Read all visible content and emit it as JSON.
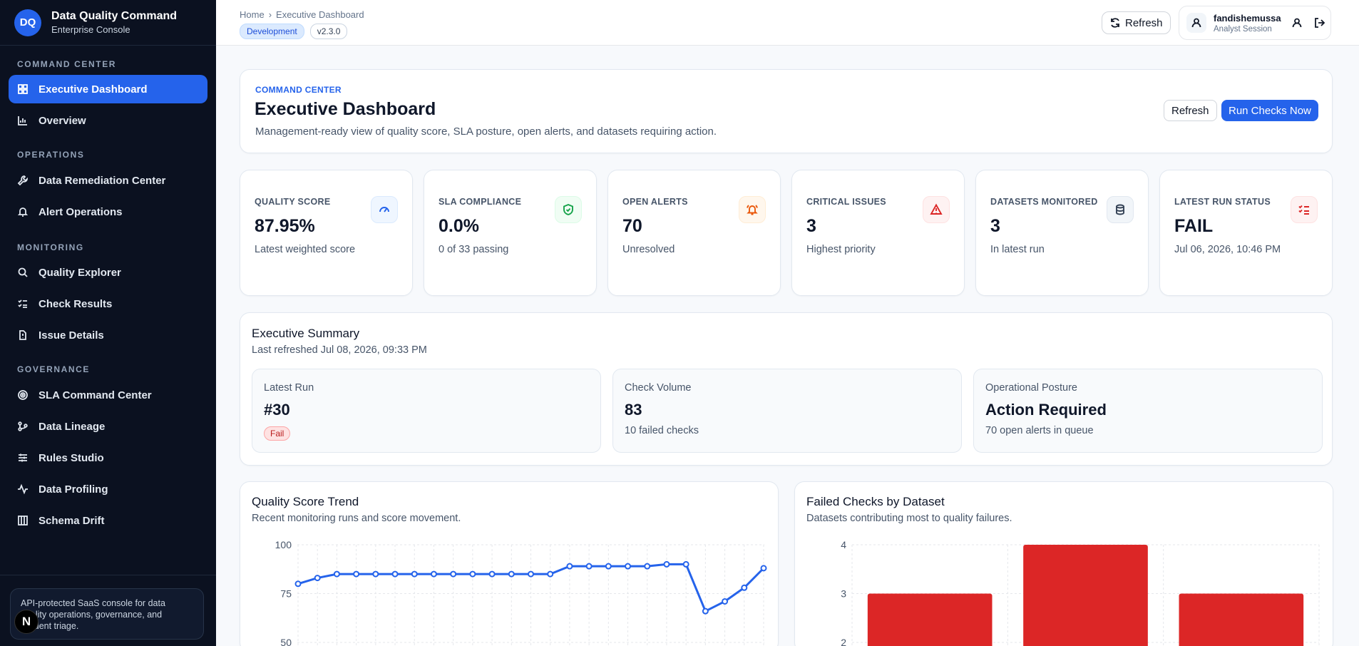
{
  "brand": {
    "logo": "DQ",
    "title": "Data Quality Command",
    "subtitle": "Enterprise Console"
  },
  "sidebar": {
    "sections": [
      {
        "label": "COMMAND CENTER"
      },
      {
        "label": "OPERATIONS"
      },
      {
        "label": "MONITORING"
      },
      {
        "label": "GOVERNANCE"
      }
    ],
    "items": [
      {
        "label": "Executive Dashboard",
        "icon": "grid-icon"
      },
      {
        "label": "Overview",
        "icon": "bar-chart-icon"
      },
      {
        "label": "Data Remediation Center",
        "icon": "wrench-icon"
      },
      {
        "label": "Alert Operations",
        "icon": "bell-icon"
      },
      {
        "label": "Quality Explorer",
        "icon": "search-icon"
      },
      {
        "label": "Check Results",
        "icon": "list-check-icon"
      },
      {
        "label": "Issue Details",
        "icon": "file-alert-icon"
      },
      {
        "label": "SLA Command Center",
        "icon": "target-icon"
      },
      {
        "label": "Data Lineage",
        "icon": "git-branch-icon"
      },
      {
        "label": "Rules Studio",
        "icon": "sliders-icon"
      },
      {
        "label": "Data Profiling",
        "icon": "activity-icon"
      },
      {
        "label": "Schema Drift",
        "icon": "columns-icon"
      }
    ],
    "footer": "API-protected SaaS console for data quality operations, governance, and incident triage.",
    "badge": "N"
  },
  "topbar": {
    "breadcrumb": {
      "home": "Home",
      "separator": "›",
      "current": "Executive Dashboard"
    },
    "env": "Development",
    "version": "v2.3.0",
    "refresh": "Refresh",
    "user": {
      "name": "fandishemussa",
      "role": "Analyst Session"
    }
  },
  "header": {
    "kicker": "COMMAND CENTER",
    "title": "Executive Dashboard",
    "description": "Management-ready view of quality score, SLA posture, open alerts, and datasets requiring action.",
    "refresh": "Refresh",
    "run": "Run Checks Now"
  },
  "kpis": [
    {
      "label": "QUALITY SCORE",
      "value": "87.95%",
      "sub": "Latest weighted score",
      "icon": "gauge-icon",
      "color": "#2563eb",
      "bg": "#eff6ff"
    },
    {
      "label": "SLA COMPLIANCE",
      "value": "0.0%",
      "sub": "0 of 33 passing",
      "icon": "shield-check-icon",
      "color": "#16a34a",
      "bg": "#f0fdf4"
    },
    {
      "label": "OPEN ALERTS",
      "value": "70",
      "sub": "Unresolved",
      "icon": "bell-ring-icon",
      "color": "#ea580c",
      "bg": "#fff7ed"
    },
    {
      "label": "CRITICAL ISSUES",
      "value": "3",
      "sub": "Highest priority",
      "icon": "alert-triangle-icon",
      "color": "#dc2626",
      "bg": "#fef2f2"
    },
    {
      "label": "DATASETS MONITORED",
      "value": "3",
      "sub": "In latest run",
      "icon": "database-icon",
      "color": "#334155",
      "bg": "#f1f5f9"
    },
    {
      "label": "LATEST RUN STATUS",
      "value": "FAIL",
      "sub": "Jul 06, 2026, 10:46 PM",
      "icon": "list-checks-icon",
      "color": "#dc2626",
      "bg": "#fef2f2"
    }
  ],
  "summary": {
    "title": "Executive Summary",
    "refreshed": "Last refreshed Jul 08, 2026, 09:33 PM",
    "latest_run": {
      "label": "Latest Run",
      "value": "#30",
      "badge": "Fail"
    },
    "check_volume": {
      "label": "Check Volume",
      "value": "83",
      "sub": "10 failed checks"
    },
    "posture": {
      "label": "Operational Posture",
      "value": "Action Required",
      "sub": "70 open alerts in queue"
    }
  },
  "charts": {
    "trend": {
      "title": "Quality Score Trend",
      "subtitle": "Recent monitoring runs and score movement."
    },
    "failed": {
      "title": "Failed Checks by Dataset",
      "subtitle": "Datasets contributing most to quality failures."
    }
  },
  "chart_data": [
    {
      "type": "line",
      "title": "Quality Score Trend",
      "y": [
        80,
        83,
        85,
        85,
        85,
        85,
        85,
        85,
        85,
        85,
        85,
        85,
        85,
        85,
        89,
        89,
        89,
        89,
        89,
        90,
        90,
        66,
        71,
        78,
        88
      ],
      "yticks": [
        100,
        75,
        50
      ],
      "ylim": [
        50,
        100
      ],
      "color": "#2563eb",
      "grid": true
    },
    {
      "type": "bar",
      "title": "Failed Checks by Dataset",
      "values": [
        3,
        4,
        3
      ],
      "yticks": [
        4,
        3,
        2
      ],
      "ylim": [
        2,
        4
      ],
      "color": "#dc2626",
      "grid": true
    }
  ]
}
